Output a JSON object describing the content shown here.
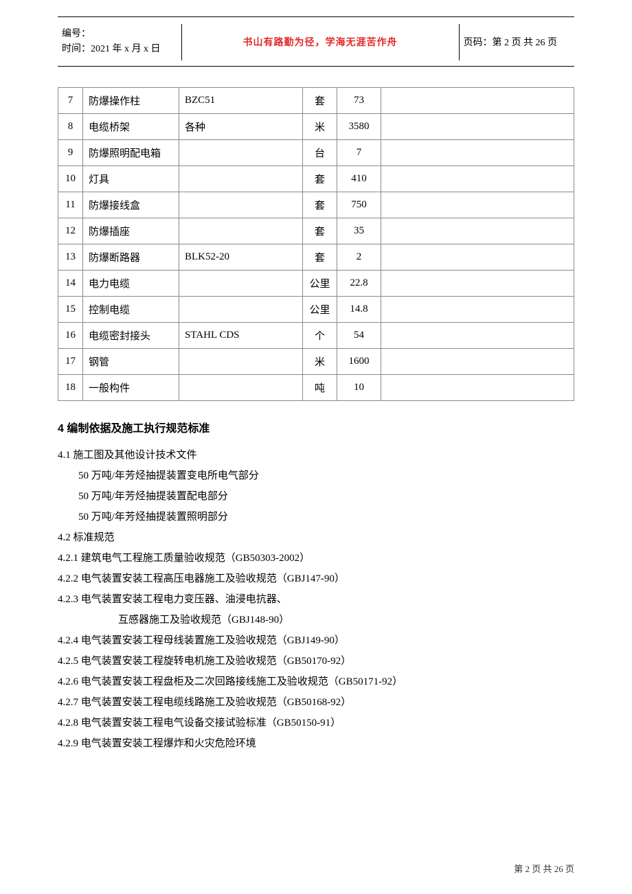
{
  "header": {
    "id_label": "编号：",
    "time_label": "时间：2021 年 x 月 x 日",
    "motto": "书山有路勤为径，学海无涯苦作舟",
    "page_label": "页码：第 2 页 共 26 页",
    "motto_color": "#e22828"
  },
  "table": {
    "rows": [
      {
        "idx": "7",
        "name": "防爆操作柱",
        "spec": "BZC51",
        "unit": "套",
        "qty": "73",
        "note": ""
      },
      {
        "idx": "8",
        "name": "电缆桥架",
        "spec": "各种",
        "unit": "米",
        "qty": "3580",
        "note": ""
      },
      {
        "idx": "9",
        "name": "防爆照明配电箱",
        "spec": "",
        "unit": "台",
        "qty": "7",
        "note": ""
      },
      {
        "idx": "10",
        "name": "灯具",
        "spec": "",
        "unit": "套",
        "qty": "410",
        "note": ""
      },
      {
        "idx": "11",
        "name": "防爆接线盒",
        "spec": "",
        "unit": "套",
        "qty": "750",
        "note": ""
      },
      {
        "idx": "12",
        "name": "防爆插座",
        "spec": "",
        "unit": "套",
        "qty": "35",
        "note": ""
      },
      {
        "idx": "13",
        "name": "防爆断路器",
        "spec": "BLK52-20",
        "unit": "套",
        "qty": "2",
        "note": ""
      },
      {
        "idx": "14",
        "name": "电力电缆",
        "spec": "",
        "unit": "公里",
        "qty": "22.8",
        "note": ""
      },
      {
        "idx": "15",
        "name": "控制电缆",
        "spec": "",
        "unit": "公里",
        "qty": "14.8",
        "note": ""
      },
      {
        "idx": "16",
        "name": "电缆密封接头",
        "spec": "STAHL CDS",
        "unit": "个",
        "qty": "54",
        "note": ""
      },
      {
        "idx": "17",
        "name": "钢管",
        "spec": "",
        "unit": "米",
        "qty": "1600",
        "note": ""
      },
      {
        "idx": "18",
        "name": "一般构件",
        "spec": "",
        "unit": "吨",
        "qty": "10",
        "note": ""
      }
    ],
    "col_widths": {
      "idx": 36,
      "name": 140,
      "spec": 180,
      "unit": 50,
      "qty": 64
    }
  },
  "section4": {
    "title": "4   编制依据及施工执行规范标准",
    "p41": "4.1 施工图及其他设计技术文件",
    "p41a": "50 万吨/年芳烃抽提装置变电所电气部分",
    "p41b": "50 万吨/年芳烃抽提装置配电部分",
    "p41c": "50 万吨/年芳烃抽提装置照明部分",
    "p42": "4.2 标准规范",
    "p421": "4.2.1  建筑电气工程施工质量验收规范（GB50303-2002）",
    "p422": "4.2.2  电气装置安装工程高压电器施工及验收规范（GBJ147-90）",
    "p423": "4.2.3  电气装置安装工程电力变压器、油浸电抗器、",
    "p423b": "互感器施工及验收规范（GBJ148-90）",
    "p424": "4.2.4  电气装置安装工程母线装置施工及验收规范（GBJ149-90）",
    "p425": "4.2.5  电气装置安装工程旋转电机施工及验收规范（GB50170-92）",
    "p426": "4.2.6  电气装置安装工程盘柜及二次回路接线施工及验收规范（GB50171-92）",
    "p427": "4.2.7  电气装置安装工程电缆线路施工及验收规范（GB50168-92）",
    "p428": "4.2.8  电气装置安装工程电气设备交接试验标准（GB50150-91）",
    "p429": "4.2.9 电气装置安装工程爆炸和火灾危险环境"
  },
  "footer": {
    "text": "第 2 页 共 26 页"
  }
}
